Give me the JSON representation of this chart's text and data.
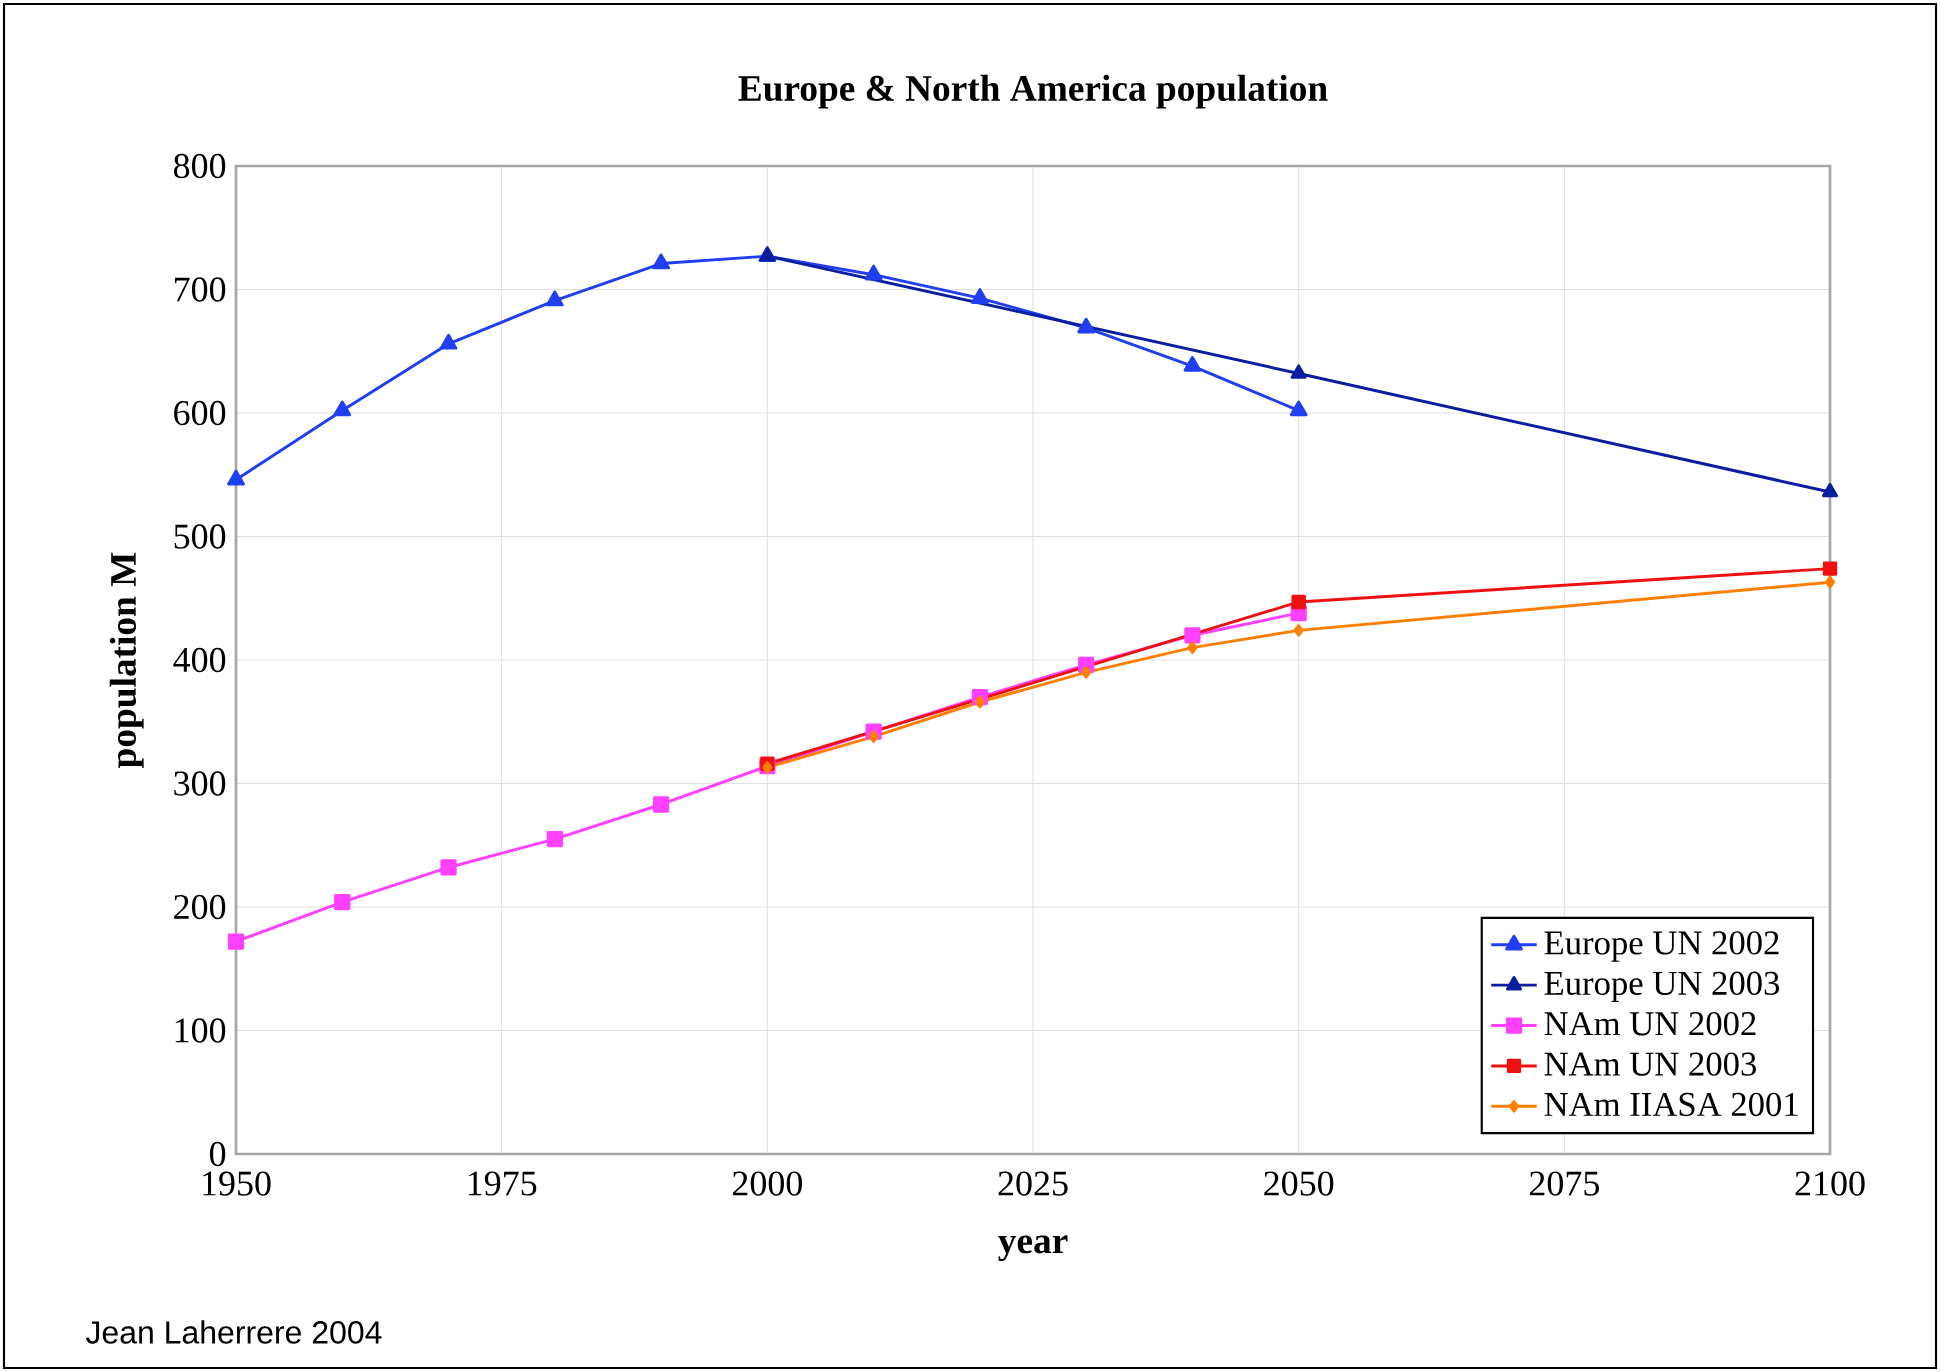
{
  "chart_data": {
    "type": "line",
    "title": "Europe & North America population",
    "xlabel": "year",
    "ylabel": "population M",
    "xlim": [
      1950,
      2100
    ],
    "xticks": [
      1950,
      1975,
      2000,
      2025,
      2050,
      2075,
      2100
    ],
    "ylim": [
      0,
      800
    ],
    "yticks": [
      0,
      100,
      200,
      300,
      400,
      500,
      600,
      700,
      800
    ],
    "grid": true,
    "legend": "bottom right",
    "line_style": "solid",
    "annotations": [
      "Jean Laherrere 2004"
    ],
    "series": [
      {
        "name": "Europe UN 2002",
        "color": "#1f3ff0",
        "marker": "triangle",
        "x": [
          1950,
          1960,
          1970,
          1980,
          1990,
          2000,
          2010,
          2020,
          2030,
          2040,
          2050
        ],
        "values": [
          546,
          602,
          656,
          691,
          721,
          727,
          712,
          693,
          669,
          638,
          602
        ]
      },
      {
        "name": "Europe UN 2003",
        "color": "#0a1fa0",
        "marker": "triangle",
        "x": [
          2000,
          2050,
          2100
        ],
        "values": [
          727,
          632,
          536
        ]
      },
      {
        "name": "NAm UN 2002",
        "color": "#ff40ff",
        "marker": "square",
        "x": [
          1950,
          1960,
          1970,
          1980,
          1990,
          2000,
          2010,
          2020,
          2030,
          2040,
          2050
        ],
        "values": [
          172,
          204,
          232,
          255,
          283,
          314,
          342,
          370,
          396,
          420,
          438
        ]
      },
      {
        "name": "NAm UN 2003",
        "color": "#ee1111",
        "marker": "square",
        "x": [
          2000,
          2050,
          2100
        ],
        "values": [
          316,
          447,
          474
        ]
      },
      {
        "name": "NAm IIASA 2001",
        "color": "#ff8000",
        "marker": "diamond",
        "x": [
          2000,
          2010,
          2020,
          2030,
          2040,
          2050,
          2100
        ],
        "values": [
          313,
          338,
          366,
          390,
          410,
          424,
          463
        ]
      }
    ]
  }
}
